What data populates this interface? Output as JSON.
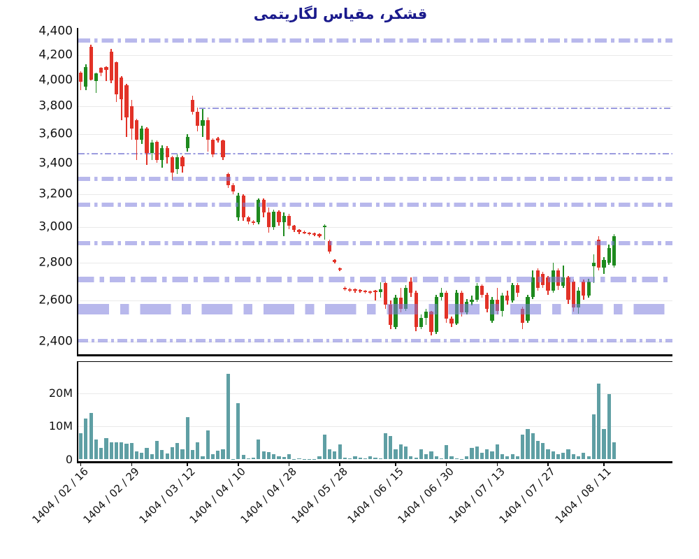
{
  "title": {
    "text": "قشکر، مقیاس لگاریتمی",
    "color": "#1a1a8c"
  },
  "colors": {
    "up": "#1e8a1e",
    "down": "#e23227",
    "volume": "#5f9fa4",
    "band_rgba": "rgba(125,125,220,0.55)",
    "refline_rgba": "rgba(130,130,215,0.8)",
    "grid": "#e9e9e9",
    "spine": "#000000",
    "tick_text": "#111111"
  },
  "chart_data": {
    "type": "candlestick+volume",
    "symbol": "قشکر",
    "scale": "logarithmic",
    "grid": "on",
    "price_axis": {
      "tick_labels": [
        "4,400",
        "4,200",
        "4,000",
        "3,800",
        "3,600",
        "3,400",
        "3,200",
        "3,000",
        "2,800",
        "2,600",
        "2,400"
      ],
      "tick_values": [
        4400,
        4200,
        4000,
        3800,
        3600,
        3400,
        3200,
        3000,
        2800,
        2600,
        2400
      ],
      "range": [
        2380,
        4420
      ]
    },
    "volume_axis": {
      "tick_labels": [
        "20M",
        "10M",
        "0"
      ],
      "tick_values_millions": [
        20,
        10,
        0
      ],
      "unit": "millions of shares",
      "max_millions": 27
    },
    "x_labels": [
      {
        "text": "1404 / 02 / 16",
        "slot": 0
      },
      {
        "text": "1404 / 02 / 29",
        "slot": 10
      },
      {
        "text": "1404 / 03 / 12",
        "slot": 21
      },
      {
        "text": "1404 / 04 / 10",
        "slot": 31
      },
      {
        "text": "1404 / 04 / 28",
        "slot": 41
      },
      {
        "text": "1404 / 05 / 28",
        "slot": 51
      },
      {
        "text": "1404 / 06 / 15",
        "slot": 62
      },
      {
        "text": "1404 / 06 / 30",
        "slot": 72
      },
      {
        "text": "1404 / 07 / 13",
        "slot": 82
      },
      {
        "text": "1404 / 07 / 27",
        "slot": 92
      },
      {
        "text": "1404 / 08 / 11",
        "slot": 103
      }
    ],
    "total_slots": 117,
    "support_resistance_bands": [
      {
        "price": 4320,
        "lw": 6
      },
      {
        "price": 3300,
        "lw": 6
      },
      {
        "price": 3135,
        "lw": 6
      },
      {
        "price": 2910,
        "lw": 6
      },
      {
        "price": 2710,
        "lw": 8
      },
      {
        "price_high": 2585,
        "price_low": 2530
      },
      {
        "price": 2405,
        "lw": 5
      }
    ],
    "reference_lines": [
      {
        "price": 3785,
        "x_start_frac": 0.203
      },
      {
        "price": 3465,
        "x_start_frac": 0.0
      }
    ],
    "ohlcv_format": [
      "open",
      "high",
      "low",
      "close",
      "volume_millions"
    ],
    "ohlcv": [
      [
        4060,
        4070,
        3920,
        3985,
        8.0
      ],
      [
        3950,
        4125,
        3920,
        4105,
        12.3
      ],
      [
        4270,
        4285,
        3995,
        4005,
        14.0
      ],
      [
        3990,
        4060,
        3900,
        4050,
        6.0
      ],
      [
        4095,
        4100,
        4030,
        4060,
        3.5
      ],
      [
        4105,
        4110,
        3990,
        4080,
        6.5
      ],
      [
        4225,
        4250,
        3975,
        4000,
        5.2
      ],
      [
        4140,
        4150,
        3830,
        3890,
        5.2
      ],
      [
        4020,
        4030,
        3700,
        3855,
        5.2
      ],
      [
        3960,
        3970,
        3580,
        3720,
        4.8
      ],
      [
        3800,
        3850,
        3560,
        3640,
        5.0
      ],
      [
        3700,
        3710,
        3420,
        3560,
        2.5
      ],
      [
        3560,
        3660,
        3530,
        3640,
        2.0
      ],
      [
        3640,
        3650,
        3390,
        3470,
        3.5
      ],
      [
        3470,
        3560,
        3420,
        3540,
        1.5
      ],
      [
        3545,
        3555,
        3405,
        3420,
        5.5
      ],
      [
        3420,
        3520,
        3370,
        3500,
        2.8
      ],
      [
        3500,
        3515,
        3400,
        3440,
        1.8
      ],
      [
        3440,
        3450,
        3290,
        3340,
        3.8
      ],
      [
        3360,
        3460,
        3330,
        3440,
        5.0
      ],
      [
        3440,
        3450,
        3340,
        3380,
        3.0
      ],
      [
        3500,
        3600,
        3480,
        3580,
        12.7
      ],
      [
        3850,
        3880,
        3740,
        3760,
        2.8
      ],
      [
        3760,
        3790,
        3620,
        3660,
        5.2
      ],
      [
        3660,
        3780,
        3580,
        3700,
        1.0
      ],
      [
        3700,
        3720,
        3480,
        3560,
        8.7
      ],
      [
        3560,
        3570,
        3440,
        3460,
        1.5
      ],
      [
        3570,
        3580,
        3540,
        3555,
        2.7
      ],
      [
        3555,
        3560,
        3420,
        3440,
        3.0
      ],
      [
        3330,
        3340,
        3240,
        3260,
        26.0
      ],
      [
        3260,
        3270,
        3200,
        3220,
        0.2
      ],
      [
        3060,
        3210,
        3040,
        3190,
        17.0
      ],
      [
        3190,
        3200,
        3040,
        3060,
        1.3
      ],
      [
        3060,
        3070,
        3020,
        3035,
        0.3
      ],
      [
        3035,
        3045,
        3015,
        3030,
        0.5
      ],
      [
        3030,
        3175,
        3020,
        3165,
        6.0
      ],
      [
        3165,
        3175,
        3060,
        3090,
        2.5
      ],
      [
        3090,
        3120,
        2970,
        3000,
        2.2
      ],
      [
        3000,
        3105,
        2985,
        3095,
        1.5
      ],
      [
        3095,
        3100,
        3010,
        3030,
        1.0
      ],
      [
        3030,
        3090,
        2950,
        3070,
        0.8
      ],
      [
        3070,
        3080,
        2990,
        3010,
        1.5
      ],
      [
        3010,
        3015,
        2975,
        2985,
        0.15
      ],
      [
        2985,
        2990,
        2960,
        2975,
        0.4
      ],
      [
        2975,
        2980,
        2960,
        2970,
        0.15
      ],
      [
        2970,
        2975,
        2955,
        2965,
        0.1
      ],
      [
        2965,
        2970,
        2950,
        2960,
        0.1
      ],
      [
        2960,
        2965,
        2940,
        2950,
        1.0
      ],
      [
        3000,
        3020,
        2930,
        3010,
        7.5
      ],
      [
        2920,
        2930,
        2850,
        2860,
        3.0
      ],
      [
        2815,
        2820,
        2795,
        2805,
        2.5
      ],
      [
        2770,
        2775,
        2755,
        2765,
        4.5
      ],
      [
        2665,
        2672,
        2650,
        2658,
        0.5
      ],
      [
        2660,
        2665,
        2645,
        2655,
        0.3
      ],
      [
        2658,
        2663,
        2642,
        2650,
        1.0
      ],
      [
        2655,
        2660,
        2640,
        2648,
        0.5
      ],
      [
        2650,
        2656,
        2636,
        2644,
        0.3
      ],
      [
        2648,
        2652,
        2632,
        2640,
        1.0
      ],
      [
        2650,
        2655,
        2600,
        2645,
        0.5
      ],
      [
        2645,
        2695,
        2615,
        2660,
        0.3
      ],
      [
        2690,
        2700,
        2560,
        2580,
        8.0
      ],
      [
        2580,
        2600,
        2460,
        2480,
        7.0
      ],
      [
        2470,
        2630,
        2460,
        2615,
        3.0
      ],
      [
        2615,
        2665,
        2540,
        2560,
        4.5
      ],
      [
        2560,
        2680,
        2550,
        2665,
        4.0
      ],
      [
        2700,
        2720,
        2620,
        2640,
        1.0
      ],
      [
        2640,
        2650,
        2450,
        2470,
        0.5
      ],
      [
        2470,
        2530,
        2460,
        2515,
        3.0
      ],
      [
        2515,
        2560,
        2480,
        2545,
        1.5
      ],
      [
        2545,
        2550,
        2430,
        2445,
        2.5
      ],
      [
        2445,
        2630,
        2435,
        2620,
        1.0
      ],
      [
        2620,
        2665,
        2600,
        2640,
        0.3
      ],
      [
        2640,
        2650,
        2490,
        2510,
        4.3
      ],
      [
        2510,
        2520,
        2470,
        2485,
        1.0
      ],
      [
        2485,
        2655,
        2480,
        2640,
        0.3
      ],
      [
        2640,
        2650,
        2520,
        2540,
        0.2
      ],
      [
        2540,
        2610,
        2530,
        2595,
        1.0
      ],
      [
        2595,
        2625,
        2575,
        2605,
        3.5
      ],
      [
        2605,
        2690,
        2595,
        2675,
        4.0
      ],
      [
        2675,
        2685,
        2615,
        2630,
        2.0
      ],
      [
        2630,
        2640,
        2540,
        2560,
        3.0
      ],
      [
        2500,
        2620,
        2490,
        2605,
        2.5
      ],
      [
        2605,
        2665,
        2530,
        2550,
        4.5
      ],
      [
        2550,
        2640,
        2520,
        2625,
        1.5
      ],
      [
        2625,
        2650,
        2580,
        2600,
        1.0
      ],
      [
        2600,
        2690,
        2590,
        2680,
        1.5
      ],
      [
        2680,
        2690,
        2620,
        2640,
        1.0
      ],
      [
        2560,
        2570,
        2460,
        2490,
        7.5
      ],
      [
        2500,
        2630,
        2490,
        2620,
        9.2
      ],
      [
        2620,
        2760,
        2610,
        2720,
        8.0
      ],
      [
        2760,
        2770,
        2650,
        2665,
        5.5
      ],
      [
        2740,
        2750,
        2665,
        2680,
        5.0
      ],
      [
        2720,
        2730,
        2630,
        2650,
        3.0
      ],
      [
        2650,
        2800,
        2640,
        2760,
        2.5
      ],
      [
        2760,
        2770,
        2655,
        2675,
        1.5
      ],
      [
        2675,
        2785,
        2665,
        2720,
        2.0
      ],
      [
        2720,
        2730,
        2585,
        2605,
        3.0
      ],
      [
        2700,
        2710,
        2545,
        2565,
        1.5
      ],
      [
        2565,
        2670,
        2535,
        2650,
        1.0
      ],
      [
        2700,
        2710,
        2605,
        2625,
        2.0
      ],
      [
        2625,
        2715,
        2615,
        2700,
        1.0
      ],
      [
        2780,
        2845,
        2690,
        2800,
        13.7
      ],
      [
        2930,
        2950,
        2760,
        2775,
        23.0
      ],
      [
        2775,
        2830,
        2740,
        2815,
        9.2
      ],
      [
        2800,
        2900,
        2790,
        2880,
        19.7
      ],
      [
        2785,
        2960,
        2775,
        2950,
        5.1
      ]
    ]
  }
}
